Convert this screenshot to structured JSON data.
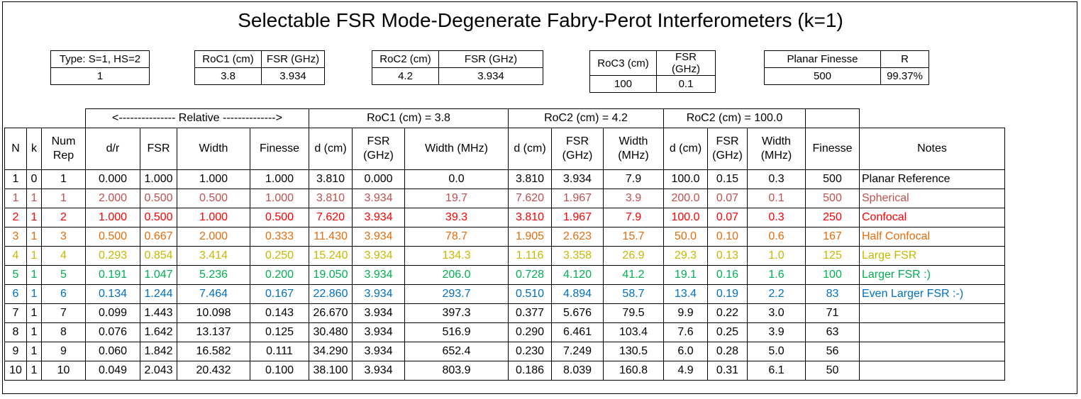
{
  "title": "Selectable FSR Mode-Degenerate Fabry-Perot Interferometers (k=1)",
  "params": [
    {
      "id": "type",
      "headers": [
        "Type: S=1, HS=2"
      ],
      "values": [
        "1"
      ]
    },
    {
      "id": "roc1",
      "headers": [
        "RoC1 (cm)",
        "FSR (GHz)"
      ],
      "values": [
        "3.8",
        "3.934"
      ]
    },
    {
      "id": "roc2",
      "headers": [
        "RoC2 (cm)",
        "FSR (GHz)"
      ],
      "values": [
        "4.2",
        "3.934"
      ]
    },
    {
      "id": "roc3",
      "headers": [
        "RoC3 (cm)",
        "FSR (GHz)"
      ],
      "values": [
        "100",
        "0.1"
      ]
    },
    {
      "id": "finesse",
      "headers": [
        "Planar Finesse",
        "R"
      ],
      "values": [
        "500",
        "99.37%"
      ]
    }
  ],
  "group_headers": {
    "relative": "<--------------- Relative -------------->",
    "roc1": "RoC1 (cm) =  3.8",
    "roc2": "RoC2 (cm) =  4.2",
    "roc3": "RoC2 (cm) =  100.0"
  },
  "columns": [
    "N",
    "k",
    "Num Rep",
    "d/r",
    "FSR",
    "Width",
    "Finesse",
    "d (cm)",
    "FSR (GHz)",
    "Width (MHz)",
    "d (cm)",
    "FSR (GHz)",
    "Width (MHz)",
    "d (cm)",
    "FSR (GHz)",
    "Width (MHz)",
    "Finesse",
    "Notes"
  ],
  "colors": {
    "black": "#000000",
    "brown": "#c0504d",
    "red": "#ff0000",
    "orange": "#e46c0a",
    "yellow": "#c6b700",
    "green": "#00b050",
    "blue": "#0070c0"
  },
  "rows": [
    {
      "color": "black",
      "cells": [
        "1",
        "0",
        "1",
        "0.000",
        "1.000",
        "1.000",
        "1.000",
        "3.810",
        "0.000",
        "0.0",
        "3.810",
        "3.934",
        "7.9",
        "100.0",
        "0.15",
        "0.3",
        "500",
        "Planar Reference"
      ]
    },
    {
      "color": "brown",
      "cells": [
        "1",
        "1",
        "1",
        "2.000",
        "0.500",
        "0.500",
        "1.000",
        "3.810",
        "3.934",
        "19.7",
        "7.620",
        "1.967",
        "3.9",
        "200.0",
        "0.07",
        "0.1",
        "500",
        "Spherical"
      ]
    },
    {
      "color": "red",
      "cells": [
        "2",
        "1",
        "2",
        "1.000",
        "0.500",
        "1.000",
        "0.500",
        "7.620",
        "3.934",
        "39.3",
        "3.810",
        "1.967",
        "7.9",
        "100.0",
        "0.07",
        "0.3",
        "250",
        "Confocal"
      ]
    },
    {
      "color": "orange",
      "cells": [
        "3",
        "1",
        "3",
        "0.500",
        "0.667",
        "2.000",
        "0.333",
        "11.430",
        "3.934",
        "78.7",
        "1.905",
        "2.623",
        "15.7",
        "50.0",
        "0.10",
        "0.6",
        "167",
        "Half Confocal"
      ]
    },
    {
      "color": "yellow",
      "cells": [
        "4",
        "1",
        "4",
        "0.293",
        "0.854",
        "3.414",
        "0.250",
        "15.240",
        "3.934",
        "134.3",
        "1.116",
        "3.358",
        "26.9",
        "29.3",
        "0.13",
        "1.0",
        "125",
        "Large FSR"
      ]
    },
    {
      "color": "green",
      "cells": [
        "5",
        "1",
        "5",
        "0.191",
        "1.047",
        "5.236",
        "0.200",
        "19.050",
        "3.934",
        "206.0",
        "0.728",
        "4.120",
        "41.2",
        "19.1",
        "0.16",
        "1.6",
        "100",
        "Larger FSR :)"
      ]
    },
    {
      "color": "blue",
      "cells": [
        "6",
        "1",
        "6",
        "0.134",
        "1.244",
        "7.464",
        "0.167",
        "22.860",
        "3.934",
        "293.7",
        "0.510",
        "4.894",
        "58.7",
        "13.4",
        "0.19",
        "2.2",
        "83",
        "Even Larger FSR :-)"
      ]
    },
    {
      "color": "black",
      "cells": [
        "7",
        "1",
        "7",
        "0.099",
        "1.443",
        "10.098",
        "0.143",
        "26.670",
        "3.934",
        "397.3",
        "0.377",
        "5.676",
        "79.5",
        "9.9",
        "0.22",
        "3.0",
        "71",
        ""
      ]
    },
    {
      "color": "black",
      "cells": [
        "8",
        "1",
        "8",
        "0.076",
        "1.642",
        "13.137",
        "0.125",
        "30.480",
        "3.934",
        "516.9",
        "0.290",
        "6.461",
        "103.4",
        "7.6",
        "0.25",
        "3.9",
        "63",
        ""
      ]
    },
    {
      "color": "black",
      "cells": [
        "9",
        "1",
        "9",
        "0.060",
        "1.842",
        "16.582",
        "0.111",
        "34.290",
        "3.934",
        "652.4",
        "0.230",
        "7.249",
        "130.5",
        "6.0",
        "0.28",
        "5.0",
        "56",
        ""
      ]
    },
    {
      "color": "black",
      "cells": [
        "10",
        "1",
        "10",
        "0.049",
        "2.043",
        "20.432",
        "0.100",
        "38.100",
        "3.934",
        "803.9",
        "0.186",
        "8.039",
        "160.8",
        "4.9",
        "0.31",
        "6.1",
        "50",
        ""
      ]
    }
  ]
}
